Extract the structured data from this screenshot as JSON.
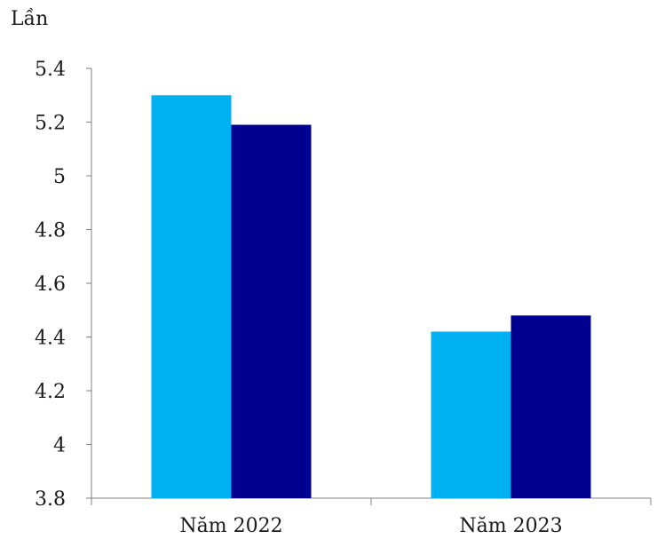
{
  "chart_data": {
    "type": "bar",
    "unit_label": "Lần",
    "categories": [
      "Năm 2022",
      "Năm 2023"
    ],
    "series": [
      {
        "values": [
          5.3,
          4.42
        ],
        "color": "#00B0F0"
      },
      {
        "values": [
          5.19,
          4.48
        ],
        "color": "#000090"
      }
    ],
    "ylim": [
      3.8,
      5.4
    ],
    "yticks": [
      "3.8",
      "4",
      "4.2",
      "4.4",
      "4.6",
      "4.8",
      "5",
      "5.2",
      "5.4"
    ],
    "xlabel": "",
    "ylabel": "",
    "grid": false,
    "legend": "none"
  }
}
